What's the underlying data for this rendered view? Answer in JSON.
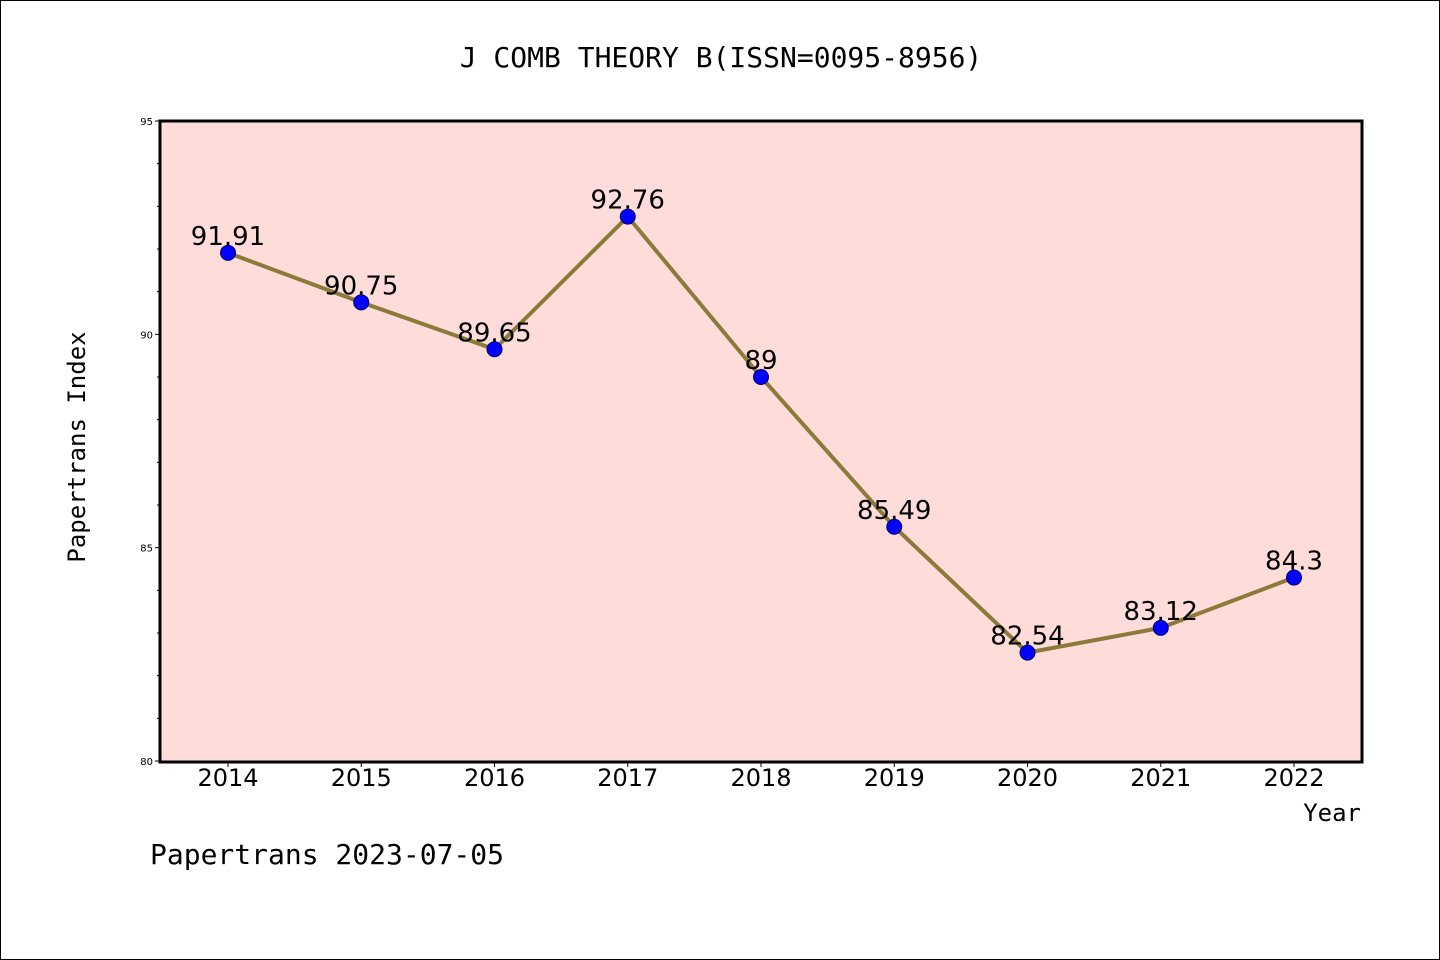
{
  "chart_data": {
    "type": "line",
    "title": "J COMB THEORY B(ISSN=0095-8956)",
    "xlabel": "Year",
    "ylabel": "Papertrans Index",
    "categories": [
      "2014",
      "2015",
      "2016",
      "2017",
      "2018",
      "2019",
      "2020",
      "2021",
      "2022"
    ],
    "series": [
      {
        "values": [
          91.91,
          90.75,
          89.65,
          92.76,
          89,
          85.49,
          82.54,
          83.12,
          84.3
        ]
      }
    ],
    "data_labels": [
      "91.91",
      "90.75",
      "89.65",
      "92.76",
      "89",
      "85.49",
      "82.54",
      "83.12",
      "84.3"
    ],
    "ylim": [
      80,
      95
    ],
    "yticks": [
      80,
      85,
      90,
      95
    ],
    "grid": false,
    "line_color": "#8b7a3a",
    "marker_color": "#0000ff",
    "plot_background": "#fddcd9"
  },
  "footer": {
    "text": "Papertrans 2023-07-05"
  }
}
